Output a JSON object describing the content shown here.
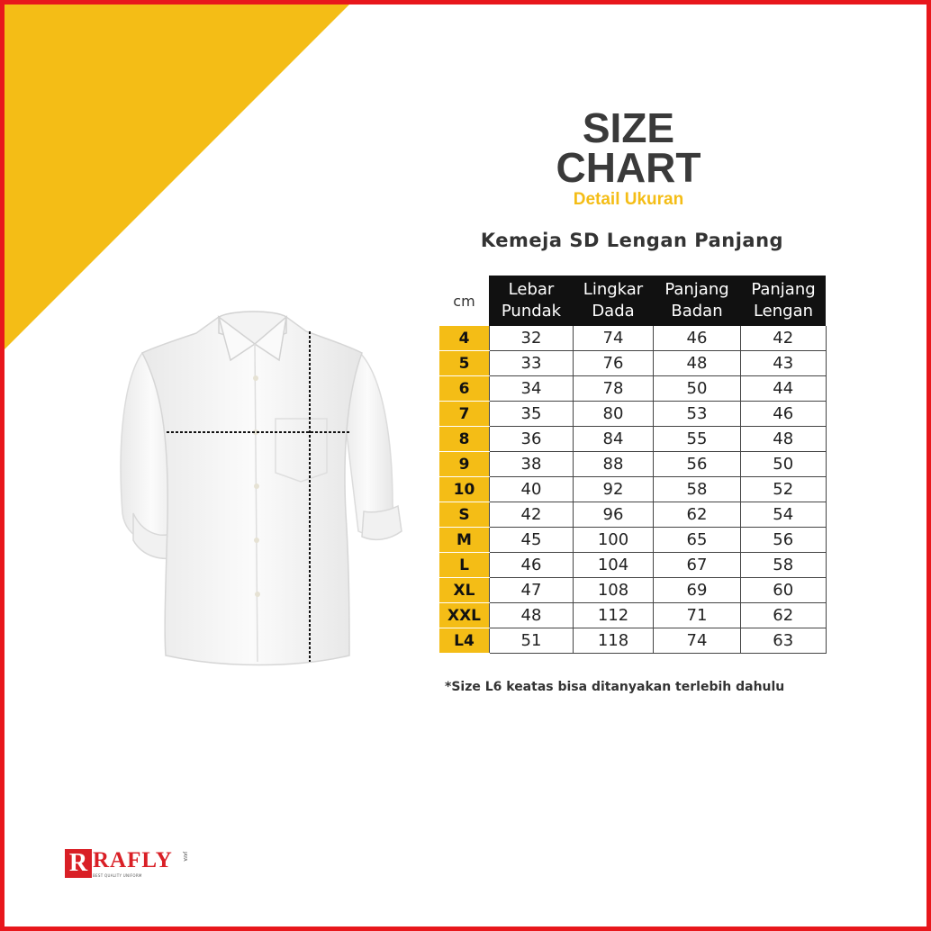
{
  "header": {
    "title_line1": "SIZE",
    "title_line2": "CHART",
    "subtitle": "Detail Ukuran",
    "product": "Kemeja SD Lengan Panjang"
  },
  "table": {
    "unit": "cm",
    "columns": [
      [
        "Lebar",
        "Pundak"
      ],
      [
        "Lingkar",
        "Dada"
      ],
      [
        "Panjang",
        "Badan"
      ],
      [
        "Panjang",
        "Lengan"
      ]
    ],
    "rows": [
      {
        "size": "4",
        "values": [
          "32",
          "74",
          "46",
          "42"
        ]
      },
      {
        "size": "5",
        "values": [
          "33",
          "76",
          "48",
          "43"
        ]
      },
      {
        "size": "6",
        "values": [
          "34",
          "78",
          "50",
          "44"
        ]
      },
      {
        "size": "7",
        "values": [
          "35",
          "80",
          "53",
          "46"
        ]
      },
      {
        "size": "8",
        "values": [
          "36",
          "84",
          "55",
          "48"
        ]
      },
      {
        "size": "9",
        "values": [
          "38",
          "88",
          "56",
          "50"
        ]
      },
      {
        "size": "10",
        "values": [
          "40",
          "92",
          "58",
          "52"
        ]
      },
      {
        "size": "S",
        "values": [
          "42",
          "96",
          "62",
          "54"
        ]
      },
      {
        "size": "M",
        "values": [
          "45",
          "100",
          "65",
          "56"
        ]
      },
      {
        "size": "L",
        "values": [
          "46",
          "104",
          "67",
          "58"
        ]
      },
      {
        "size": "XL",
        "values": [
          "47",
          "108",
          "69",
          "60"
        ]
      },
      {
        "size": "XXL",
        "values": [
          "48",
          "112",
          "71",
          "62"
        ]
      },
      {
        "size": "L4",
        "values": [
          "51",
          "118",
          "74",
          "63"
        ]
      }
    ]
  },
  "note": "*Size L6 keatas bisa ditanyakan terlebih dahulu",
  "logo": {
    "mark": "R",
    "word": "RAFLY",
    "tagline": "BEST QUALITY UNIFORM",
    "suffix": "JAYA"
  },
  "colors": {
    "accent_yellow": "#f4bd16",
    "frame_red": "#e8171c",
    "header_black": "#111111"
  },
  "icons": {
    "product_image": "white-long-sleeve-shirt"
  }
}
